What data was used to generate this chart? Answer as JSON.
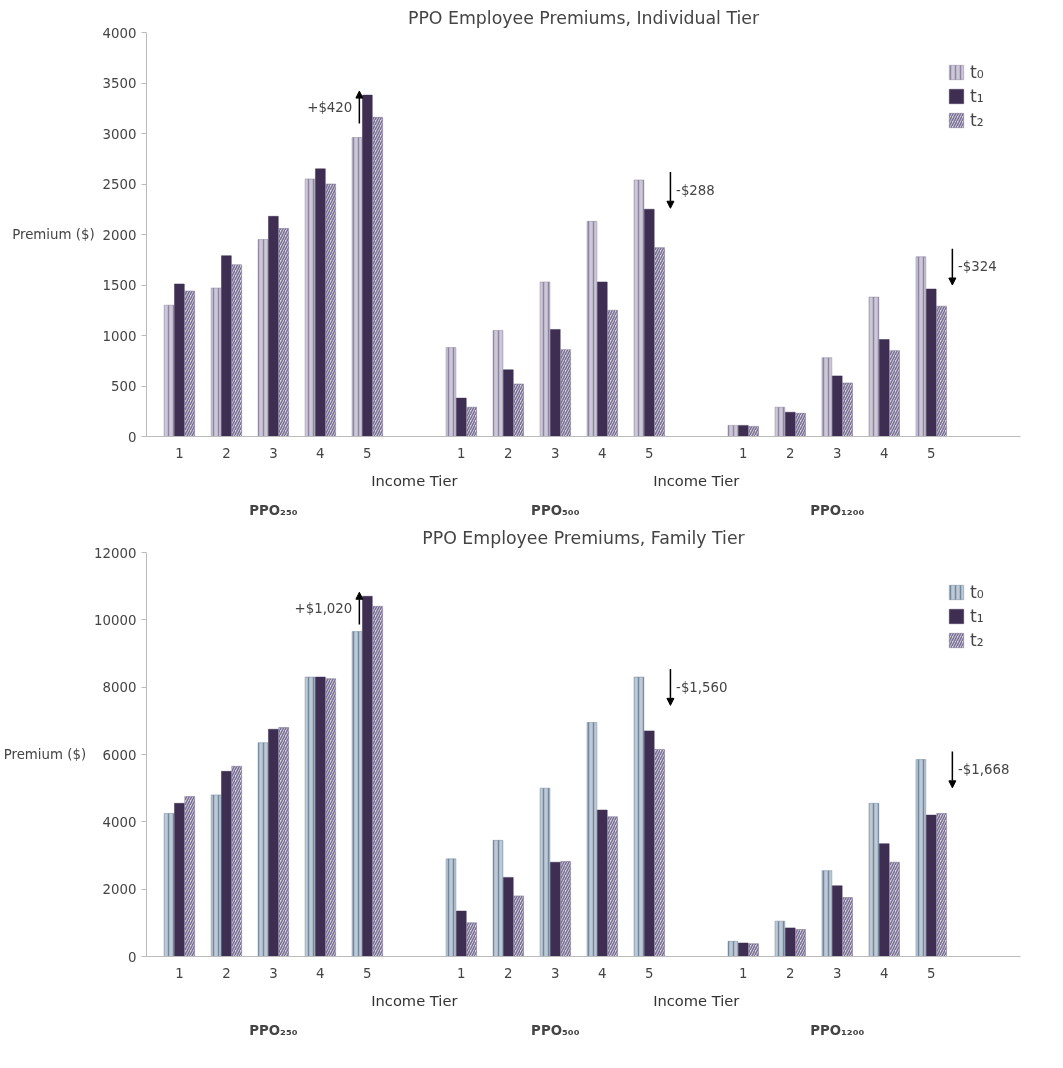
{
  "chart_data": [
    {
      "type": "bar",
      "title": "PPO Employee Premiums, Individual Tier",
      "xlabel": "Income Tier",
      "ylabel": "Premium ($)",
      "categories": [
        "1",
        "2",
        "3",
        "4",
        "5",
        null,
        "1",
        "2",
        "3",
        "4",
        "5",
        null,
        "1",
        "2",
        "3",
        "4",
        "5"
      ],
      "series": [
        {
          "name": "t₀",
          "color": "#8e84a3",
          "values": [
            1300,
            1470,
            1950,
            2550,
            2960,
            null,
            880,
            1050,
            1530,
            2130,
            2540,
            null,
            110,
            290,
            780,
            1380,
            1780
          ]
        },
        {
          "name": "t₁",
          "color": "#3d2e52",
          "values": [
            1510,
            1790,
            2180,
            2650,
            3380,
            null,
            380,
            660,
            1060,
            1530,
            2250,
            null,
            110,
            240,
            600,
            960,
            1460
          ]
        },
        {
          "name": "t₂",
          "color": "#7a7094",
          "values": [
            1440,
            1700,
            2060,
            2500,
            3160,
            null,
            290,
            520,
            860,
            1250,
            1870,
            null,
            100,
            230,
            530,
            850,
            1290
          ]
        }
      ],
      "ylim": [
        0,
        4000
      ],
      "yticks": [
        0,
        500,
        1000,
        1500,
        2000,
        2500,
        3000,
        3500,
        4000
      ],
      "grid": false,
      "legend": "top right",
      "annotations": [
        "PPO₂₅₀",
        "PPO₅₀₀",
        "PPO₁₂₀₀",
        "+$420",
        "-$288",
        "-$324"
      ]
    },
    {
      "type": "bar",
      "title": "PPO Employee Premiums, Family Tier",
      "xlabel": "Income Tier",
      "ylabel": "Premium ($)",
      "categories": [
        "1",
        "2",
        "3",
        "4",
        "5",
        null,
        "1",
        "2",
        "3",
        "4",
        "5",
        null,
        "1",
        "2",
        "3",
        "4",
        "5"
      ],
      "series": [
        {
          "name": "t₀",
          "color": "#7088a0",
          "values": [
            4250,
            4800,
            6350,
            8300,
            9650,
            null,
            2900,
            3450,
            5000,
            6950,
            8300,
            null,
            450,
            1050,
            2550,
            4550,
            5850
          ]
        },
        {
          "name": "t₁",
          "color": "#3d2e52",
          "values": [
            4550,
            5500,
            6750,
            8300,
            10700,
            null,
            1350,
            2350,
            2800,
            4350,
            6700,
            null,
            400,
            850,
            2100,
            3350,
            4200
          ]
        },
        {
          "name": "t₂",
          "color": "#7a7094",
          "values": [
            4750,
            5650,
            6800,
            8250,
            10400,
            null,
            1000,
            1800,
            2820,
            4150,
            6150,
            null,
            380,
            800,
            1750,
            2800,
            4250
          ]
        }
      ],
      "ylim": [
        0,
        12000
      ],
      "yticks": [
        0,
        2000,
        4000,
        6000,
        8000,
        10000,
        12000
      ],
      "grid": false,
      "legend": "top right",
      "annotations": [
        "PPO₂₅₀",
        "PPO₅₀₀",
        "PPO₁₂₀₀",
        "+$1,020",
        "-$1,560",
        "-$1,668"
      ]
    }
  ]
}
